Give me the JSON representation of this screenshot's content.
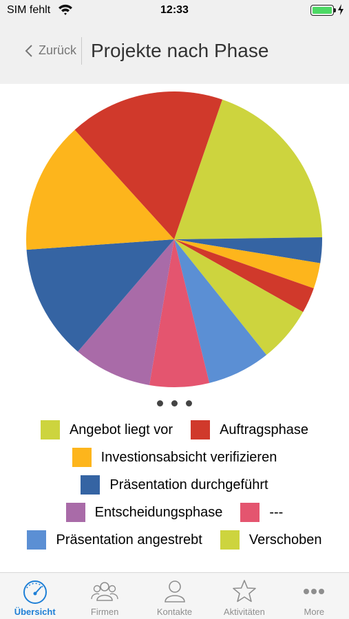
{
  "status_bar": {
    "carrier": "SIM fehlt",
    "time": "12:33",
    "battery_level": 1.0,
    "colors": {
      "battery": "#4cd964"
    }
  },
  "nav": {
    "back_label": "Zurück",
    "title": "Projekte nach Phase"
  },
  "pager": {
    "pages": 3,
    "current": 1
  },
  "chart_data": {
    "type": "pie",
    "title": "Projekte nach Phase",
    "start_angle_deg": 90,
    "direction": "clockwise",
    "slices": [
      {
        "label": "Angebot liegt vor",
        "value": 19.5,
        "color": "#cdd43e"
      },
      {
        "label": "",
        "value": 2.8,
        "color": "#3564a3"
      },
      {
        "label": "",
        "value": 2.8,
        "color": "#fdb51c"
      },
      {
        "label": "",
        "value": 2.8,
        "color": "#d0392b"
      },
      {
        "label": "",
        "value": 6.1,
        "color": "#cdd43e"
      },
      {
        "label": "Präsentation angestrebt",
        "value": 6.9,
        "color": "#5b8fd4"
      },
      {
        "label": "---",
        "value": 6.5,
        "color": "#e4556f"
      },
      {
        "label": "Entscheidungsphase",
        "value": 8.6,
        "color": "#a96ba8"
      },
      {
        "label": "Präsentation durchgeführt",
        "value": 12.6,
        "color": "#3564a3"
      },
      {
        "label": "Investionsabsicht verifizieren",
        "value": 14.4,
        "color": "#fdb51c"
      },
      {
        "label": "Auftragsphase",
        "value": 17.0,
        "color": "#d0392b"
      }
    ],
    "legend": [
      [
        {
          "label": "Angebot liegt vor",
          "color": "#cdd43e"
        },
        {
          "label": "Auftragsphase",
          "color": "#d0392b"
        }
      ],
      [
        {
          "label": "Investionsabsicht verifizieren",
          "color": "#fdb51c"
        }
      ],
      [
        {
          "label": "Präsentation durchgeführt",
          "color": "#3564a3"
        }
      ],
      [
        {
          "label": "Entscheidungsphase",
          "color": "#a96ba8"
        },
        {
          "label": "---",
          "color": "#e4556f"
        }
      ],
      [
        {
          "label": "Präsentation angestrebt",
          "color": "#5b8fd4"
        },
        {
          "label": "Verschoben",
          "color": "#cdd43e"
        }
      ]
    ],
    "legend_placement": "bottom"
  },
  "tabs": [
    {
      "label": "Übersicht",
      "icon": "speedometer-icon",
      "active": true
    },
    {
      "label": "Firmen",
      "icon": "group-icon",
      "active": false
    },
    {
      "label": "Kontakte",
      "icon": "person-icon",
      "active": false
    },
    {
      "label": "Aktivitäten",
      "icon": "star-icon",
      "active": false
    },
    {
      "label": "More",
      "icon": "more-dots-icon",
      "active": false
    }
  ],
  "colors": {
    "accent": "#1e7fd6",
    "inactive": "#8e8e8e",
    "bar_background": "#f0f0f0"
  }
}
